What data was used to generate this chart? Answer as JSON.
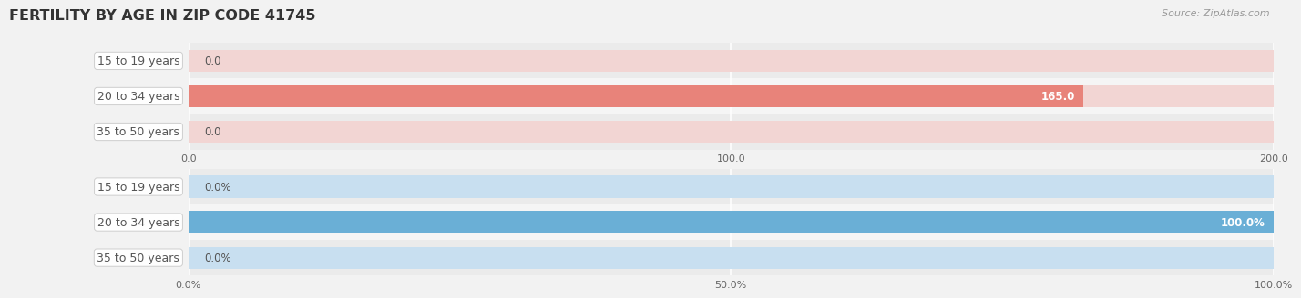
{
  "title": "FERTILITY BY AGE IN ZIP CODE 41745",
  "source": "Source: ZipAtlas.com",
  "top_chart": {
    "categories": [
      "15 to 19 years",
      "20 to 34 years",
      "35 to 50 years"
    ],
    "values": [
      0.0,
      165.0,
      0.0
    ],
    "xlim": [
      0,
      200.0
    ],
    "xticks": [
      0.0,
      100.0,
      200.0
    ],
    "xtick_labels": [
      "0.0",
      "100.0",
      "200.0"
    ],
    "bar_color": "#E8837A",
    "bar_bg_color": "#F2D5D3",
    "value_labels": [
      "0.0",
      "165.0",
      "0.0"
    ]
  },
  "bottom_chart": {
    "categories": [
      "15 to 19 years",
      "20 to 34 years",
      "35 to 50 years"
    ],
    "values": [
      0.0,
      100.0,
      0.0
    ],
    "xlim": [
      0,
      100.0
    ],
    "xticks": [
      0.0,
      50.0,
      100.0
    ],
    "xtick_labels": [
      "0.0%",
      "50.0%",
      "100.0%"
    ],
    "bar_color": "#6AAFD6",
    "bar_bg_color": "#C8DFF0",
    "value_labels": [
      "0.0%",
      "100.0%",
      "0.0%"
    ]
  },
  "bg_color": "#F2F2F2",
  "row_bg_even": "#EBEBEB",
  "row_bg_odd": "#F5F5F5",
  "title_color": "#333333",
  "label_text_color": "#555555",
  "source_color": "#999999",
  "label_font_size": 9.0,
  "value_font_size": 8.5,
  "tick_font_size": 8.0,
  "title_font_size": 11.5
}
